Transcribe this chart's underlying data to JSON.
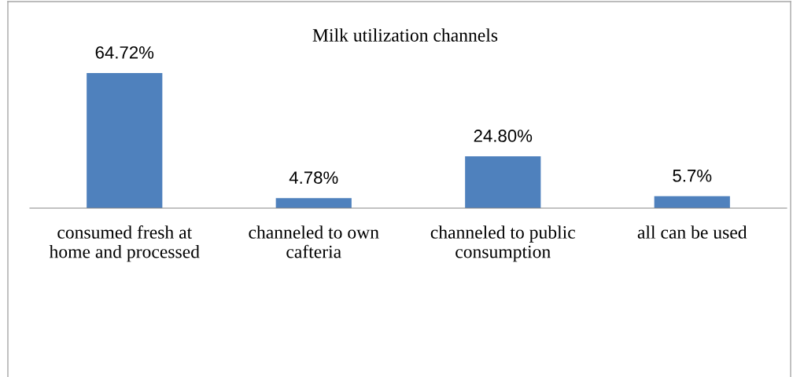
{
  "chart_data": {
    "type": "bar",
    "title": "Milk utilization channels",
    "categories": [
      "consumed fresh at home and processed",
      "channeled to own cafteria",
      "channeled to public consumption",
      "all can be used"
    ],
    "values": [
      64.72,
      4.78,
      24.8,
      5.7
    ],
    "value_labels": [
      "64.72%",
      "4.78%",
      "24.80%",
      "5.7%"
    ],
    "color": "#4f81bd",
    "grid": false,
    "legend": false
  }
}
